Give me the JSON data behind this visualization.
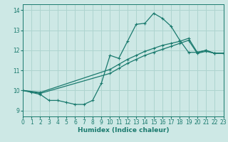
{
  "xlabel": "Humidex (Indice chaleur)",
  "xlim": [
    0,
    23
  ],
  "ylim": [
    8.7,
    14.3
  ],
  "yticks": [
    9,
    10,
    11,
    12,
    13,
    14
  ],
  "xticks": [
    0,
    1,
    2,
    3,
    4,
    5,
    6,
    7,
    8,
    9,
    10,
    11,
    12,
    13,
    14,
    15,
    16,
    17,
    18,
    19,
    20,
    21,
    22,
    23
  ],
  "line_color": "#1a7a6e",
  "bg_color": "#cde8e5",
  "grid_color": "#aed4cf",
  "line1_x": [
    0,
    1,
    2,
    3,
    4,
    5,
    6,
    7,
    8,
    9,
    10,
    11,
    12,
    13,
    14,
    15,
    16,
    17,
    18,
    19,
    20,
    21,
    22,
    23
  ],
  "line1_y": [
    10.0,
    9.9,
    9.8,
    9.5,
    9.5,
    9.4,
    9.3,
    9.3,
    9.5,
    10.35,
    11.75,
    11.6,
    12.45,
    13.3,
    13.35,
    13.85,
    13.6,
    13.2,
    12.5,
    11.9,
    11.9,
    12.0,
    11.85,
    11.85
  ],
  "line2_x": [
    0,
    2,
    10,
    11,
    12,
    13,
    14,
    15,
    16,
    17,
    18,
    19,
    20,
    21,
    22,
    23
  ],
  "line2_y": [
    10.0,
    9.9,
    11.05,
    11.3,
    11.55,
    11.75,
    11.95,
    12.1,
    12.25,
    12.35,
    12.45,
    12.6,
    11.9,
    12.0,
    11.85,
    11.85
  ],
  "line3_x": [
    0,
    2,
    10,
    11,
    12,
    13,
    14,
    15,
    16,
    17,
    18,
    19,
    20,
    21,
    22,
    23
  ],
  "line3_y": [
    10.0,
    9.85,
    10.85,
    11.1,
    11.35,
    11.55,
    11.75,
    11.9,
    12.05,
    12.2,
    12.35,
    12.5,
    11.85,
    11.95,
    11.85,
    11.85
  ]
}
